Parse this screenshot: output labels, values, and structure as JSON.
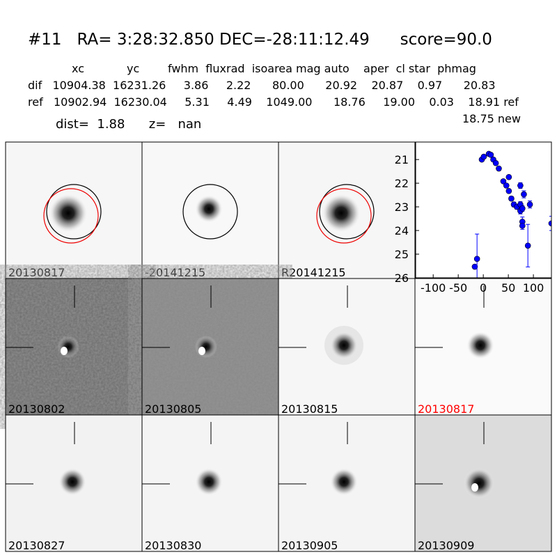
{
  "header": {
    "title": "#11   RA= 3:28:32.850 DEC=-28:11:12.49      score=90.0",
    "columns": "xc            yc        fwhm  fluxrad  isoarea mag auto    aper  cl star  phmag",
    "dif": "dif   10904.38  16231.26     3.86     2.22      80.00      20.92    20.87    0.97      20.83",
    "ref": "ref   10902.94  16230.04     5.31     4.49    1049.00      18.76     19.00    0.03    18.91 ref",
    "new": "18.75 new",
    "dist": "dist=  1.88      z=   nan"
  },
  "panels": [
    {
      "label": "20130817"
    },
    {
      "label": "-20141215"
    },
    {
      "label": "R20141215"
    },
    {
      "label": "20130802"
    },
    {
      "label": "20130805"
    },
    {
      "label": "20130815"
    },
    {
      "label": "20130817",
      "color": "#ff0000"
    },
    {
      "label": "20130827"
    },
    {
      "label": "20130830"
    },
    {
      "label": "20130905"
    },
    {
      "label": "20130909"
    }
  ],
  "chart_data": {
    "type": "scatter",
    "x": [
      -17,
      -12.5,
      -3,
      1,
      11,
      15,
      20,
      25,
      31,
      40,
      46,
      51,
      51,
      56,
      61,
      67,
      74,
      74,
      74,
      78,
      78,
      78,
      81,
      89,
      93,
      136
    ],
    "series": [
      {
        "color": "#0000ff",
        "values": [
          25.53,
          25.2,
          21.0,
          20.88,
          20.76,
          20.8,
          21.0,
          21.15,
          21.38,
          21.92,
          22.1,
          21.74,
          22.33,
          22.65,
          22.9,
          23.0,
          22.1,
          22.9,
          23.17,
          23.07,
          23.63,
          23.8,
          22.47,
          24.64,
          22.9,
          23.7
        ],
        "errors": [
          0.05,
          1.05,
          0.05,
          0.04,
          0.04,
          0.04,
          0.05,
          0.05,
          0.06,
          0.07,
          0.08,
          0.07,
          0.08,
          0.09,
          0.1,
          0.1,
          0.12,
          0.12,
          0.13,
          0.12,
          0.2,
          0.15,
          0.15,
          0.9,
          0.15,
          0.3
        ]
      }
    ],
    "xlim": [
      -135,
      136
    ],
    "ylim": [
      20.26,
      26
    ],
    "y_inverted": true,
    "xticks": [
      -100,
      -50,
      0,
      50,
      100
    ],
    "yticks": [
      21,
      22,
      23,
      24,
      25,
      26
    ]
  }
}
